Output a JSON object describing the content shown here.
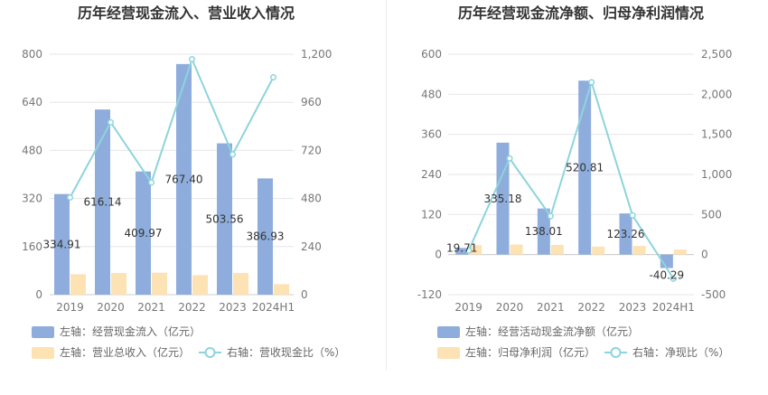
{
  "charts": [
    {
      "title": "历年经营现金流入、营业收入情况",
      "legend": [
        {
          "label": "左轴：经营现金流入（亿元）",
          "kind": "bar",
          "color": "#8eaddc"
        },
        {
          "label": "左轴：营业总收入（亿元）",
          "kind": "bar",
          "color": "#fde2b4"
        },
        {
          "label": "右轴：营收现金比（%）",
          "kind": "line",
          "color": "#8dd4dc"
        }
      ]
    },
    {
      "title": "历年经营现金流净额、归母净利润情况",
      "legend": [
        {
          "label": "左轴：经营活动现金流净额（亿元）",
          "kind": "bar",
          "color": "#8eaddc"
        },
        {
          "label": "左轴：归母净利润（亿元）",
          "kind": "bar",
          "color": "#fde2b4"
        },
        {
          "label": "右轴：净现比（%）",
          "kind": "line",
          "color": "#8dd4dc"
        }
      ]
    }
  ],
  "chart_data": [
    {
      "type": "bar",
      "title": "历年经营现金流入、营业收入情况",
      "categories": [
        "2019",
        "2020",
        "2021",
        "2022",
        "2023",
        "2024H1"
      ],
      "series": [
        {
          "name": "左轴：经营现金流入（亿元）",
          "axis": "left",
          "values": [
            334.91,
            616.14,
            409.97,
            767.4,
            503.56,
            386.93
          ],
          "labels": [
            "334.91",
            "616.14",
            "409.97",
            "767.40",
            "503.56",
            "386.93"
          ]
        },
        {
          "name": "左轴：营业总收入（亿元）",
          "axis": "left",
          "values": [
            68,
            72,
            73,
            65,
            72,
            35
          ]
        },
        {
          "name": "右轴：营收现金比（%）",
          "axis": "right",
          "type": "line",
          "values": [
            485,
            860,
            560,
            1175,
            700,
            1085
          ]
        }
      ],
      "left_axis": {
        "ylim": [
          0,
          800
        ],
        "ticks": [
          "0",
          "160",
          "320",
          "480",
          "640",
          "800"
        ]
      },
      "right_axis": {
        "ylim": [
          0,
          1200
        ],
        "ticks": [
          "0",
          "240",
          "480",
          "720",
          "960",
          "1,200"
        ]
      },
      "grid": true,
      "legend_position": "bottom-left"
    },
    {
      "type": "bar",
      "title": "历年经营现金流净额、归母净利润情况",
      "categories": [
        "2019",
        "2020",
        "2021",
        "2022",
        "2023",
        "2024H1"
      ],
      "series": [
        {
          "name": "左轴：经营活动现金流净额（亿元）",
          "axis": "left",
          "values": [
            19.71,
            335.18,
            138.01,
            520.81,
            123.26,
            -40.29
          ],
          "labels": [
            "19.71",
            "335.18",
            "138.01",
            "520.81",
            "123.26",
            "-40.29"
          ]
        },
        {
          "name": "左轴：归母净利润（亿元）",
          "axis": "left",
          "values": [
            28,
            30,
            29,
            24,
            26,
            15
          ]
        },
        {
          "name": "右轴：净现比（%）",
          "axis": "right",
          "type": "line",
          "values": [
            50,
            1200,
            480,
            2150,
            490,
            -300
          ]
        }
      ],
      "left_axis": {
        "ylim": [
          -120,
          600
        ],
        "ticks": [
          "-120",
          "0",
          "120",
          "240",
          "360",
          "480",
          "600"
        ]
      },
      "right_axis": {
        "ylim": [
          -500,
          2500
        ],
        "ticks": [
          "-500",
          "0",
          "500",
          "1,000",
          "1,500",
          "2,000",
          "2,500"
        ]
      },
      "grid": true,
      "legend_position": "bottom-left"
    }
  ]
}
